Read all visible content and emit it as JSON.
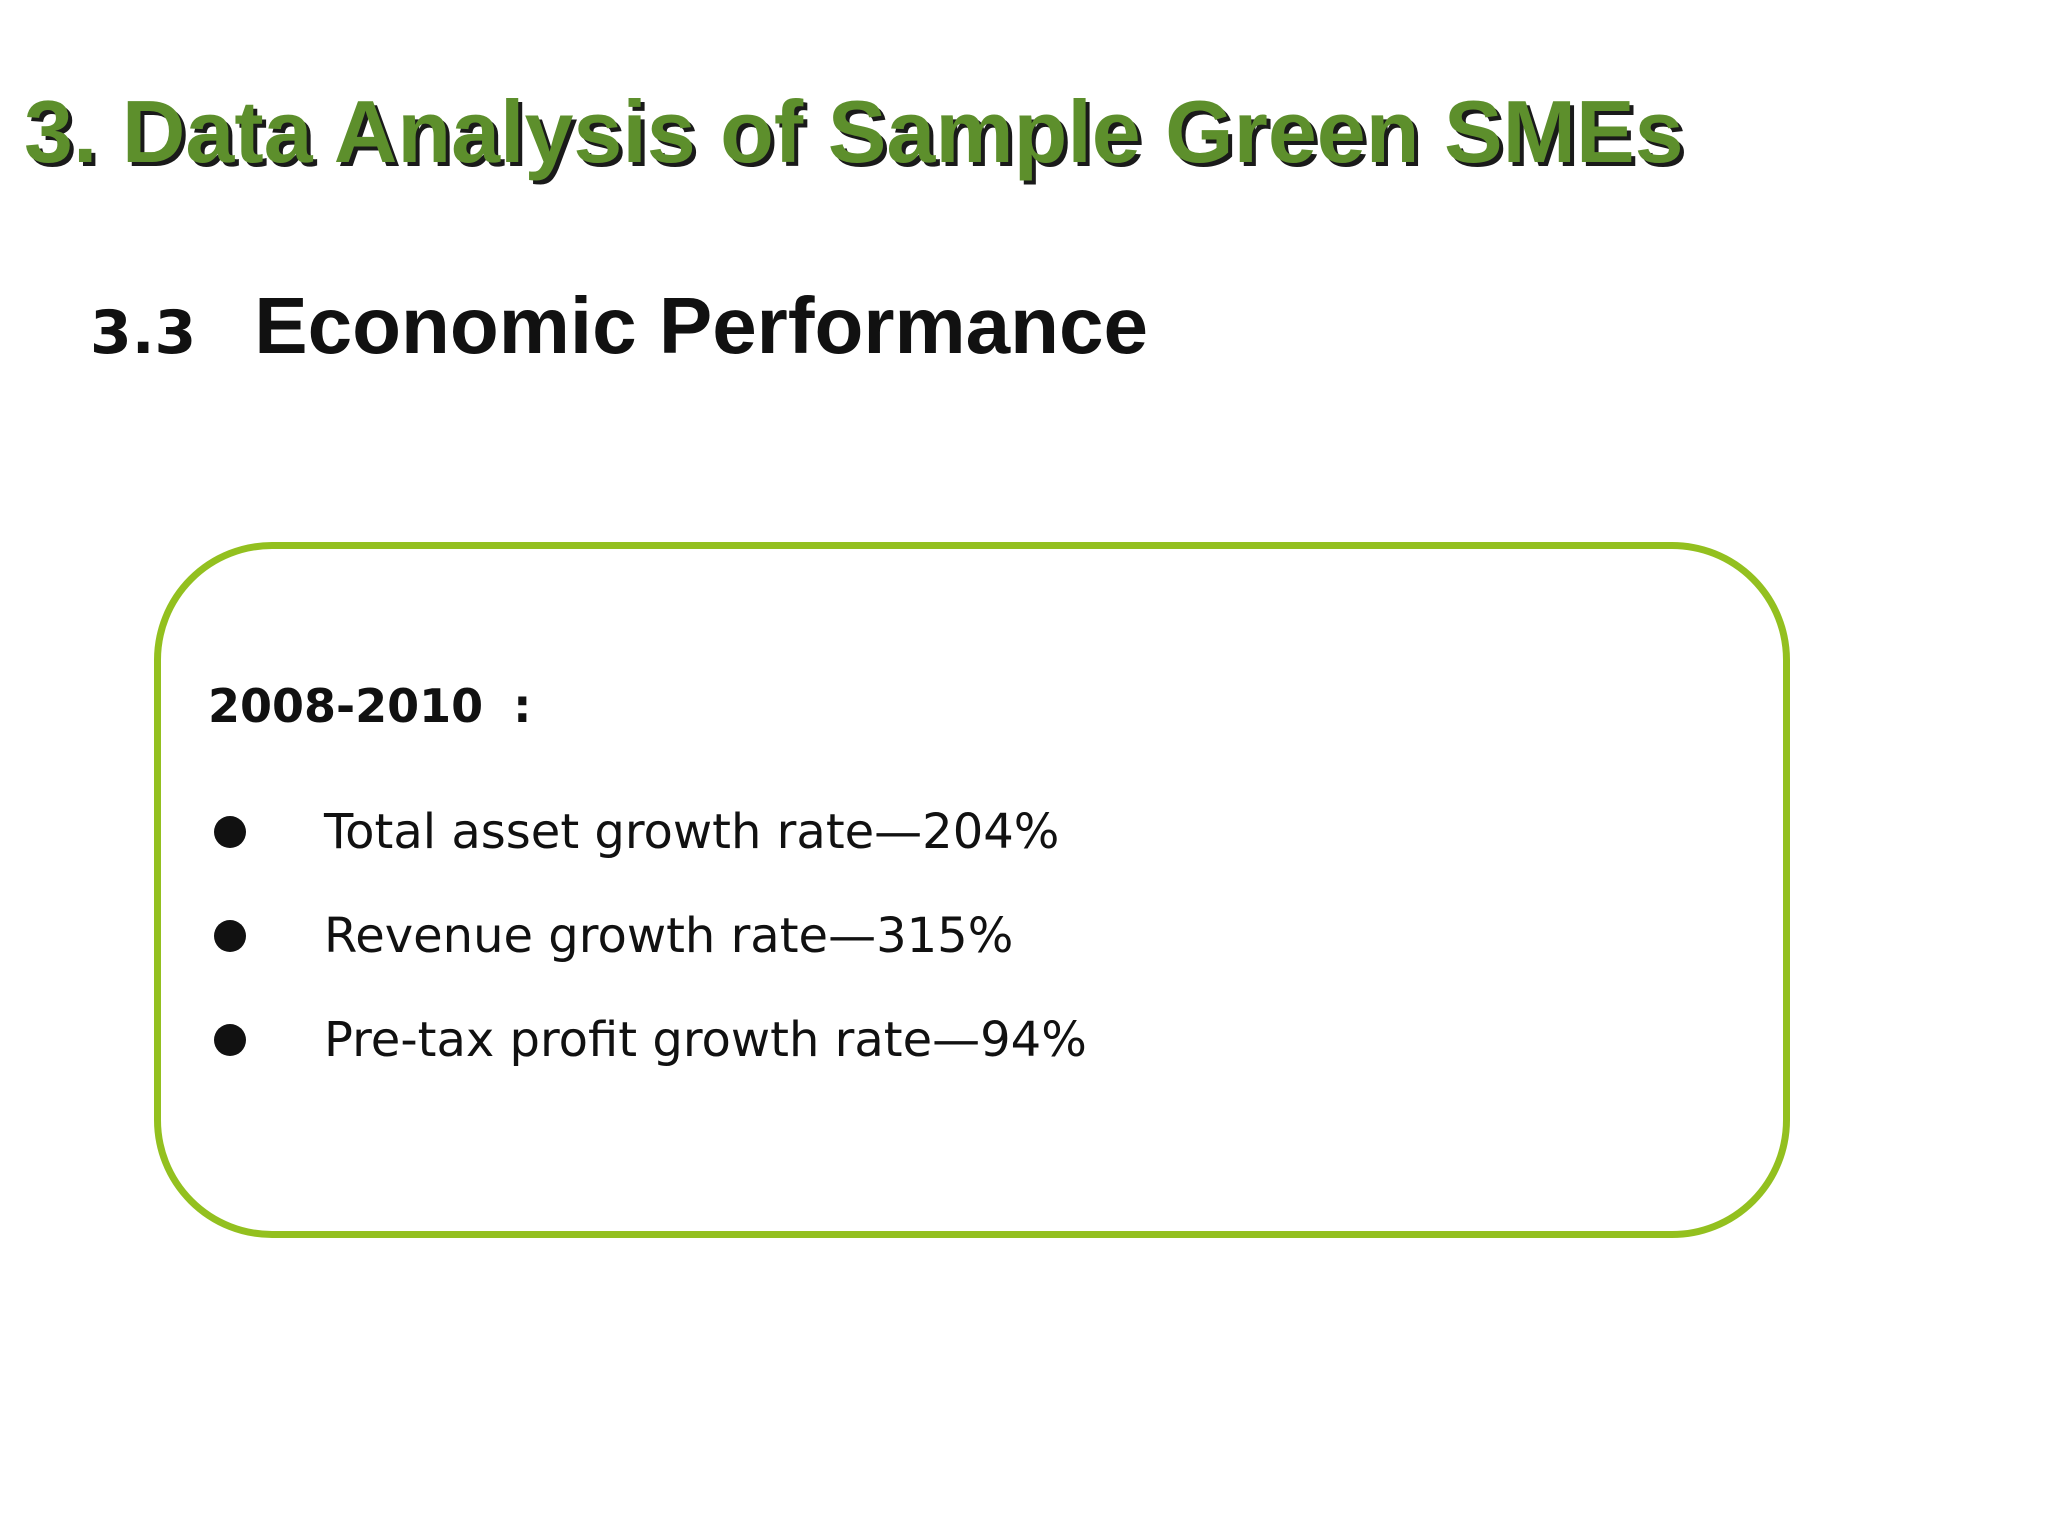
{
  "slide": {
    "title": "3. Data Analysis of Sample Green SMEs",
    "section": {
      "number": "3.3",
      "title": "Economic Performance"
    },
    "box": {
      "period": "2008-2010",
      "colon": ":",
      "items": [
        "Total asset growth rate—204%",
        "Revenue growth rate—315%",
        "Pre-tax profit growth rate—94%"
      ]
    }
  },
  "colors": {
    "title_green": "#5d8f2c",
    "box_border": "#93c01f",
    "text": "#111111"
  }
}
